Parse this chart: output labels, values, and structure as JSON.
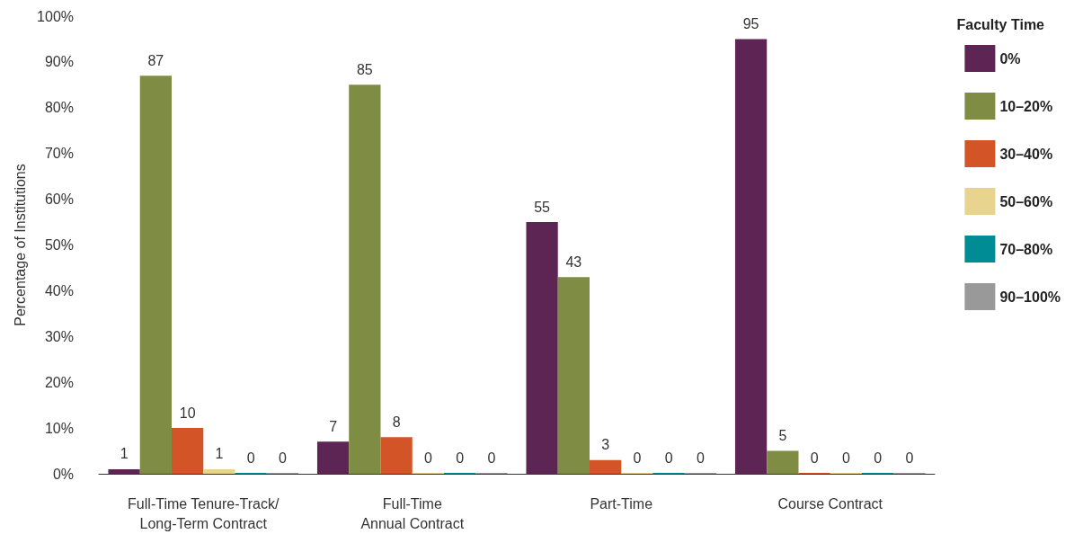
{
  "chart_data": {
    "type": "bar",
    "ylabel": "Percentage of Institutions",
    "legend_title": "Faculty Time",
    "categories": [
      "Full-Time Tenure-Track/\nLong-Term Contract",
      "Full-Time\nAnnual Contract",
      "Part-Time",
      "Course Contract"
    ],
    "series": [
      {
        "name": "0%",
        "color": "#5c2553",
        "values": [
          1,
          7,
          55,
          95
        ]
      },
      {
        "name": "10–20%",
        "color": "#7f8c43",
        "values": [
          87,
          85,
          43,
          5
        ]
      },
      {
        "name": "30–40%",
        "color": "#d35427",
        "values": [
          10,
          8,
          3,
          0
        ]
      },
      {
        "name": "50–60%",
        "color": "#e8d48f",
        "values": [
          1,
          0,
          0,
          0
        ]
      },
      {
        "name": "70–80%",
        "color": "#008c95",
        "values": [
          0,
          0,
          0,
          0
        ]
      },
      {
        "name": "90–100%",
        "color": "#999999",
        "values": [
          0,
          0,
          0,
          0
        ]
      }
    ],
    "ylim": [
      0,
      100
    ],
    "yticks": [
      {
        "value": 0,
        "label": "0%"
      },
      {
        "value": 10,
        "label": "10%"
      },
      {
        "value": 20,
        "label": "20%"
      },
      {
        "value": 30,
        "label": "30%"
      },
      {
        "value": 40,
        "label": "40%"
      },
      {
        "value": 50,
        "label": "50%"
      },
      {
        "value": 60,
        "label": "60%"
      },
      {
        "value": 70,
        "label": "70%"
      },
      {
        "value": 80,
        "label": "80%"
      },
      {
        "value": 90,
        "label": "90%"
      },
      {
        "value": 100,
        "label": "100%"
      }
    ],
    "data_labels": true,
    "grid": false,
    "legend": "right"
  }
}
